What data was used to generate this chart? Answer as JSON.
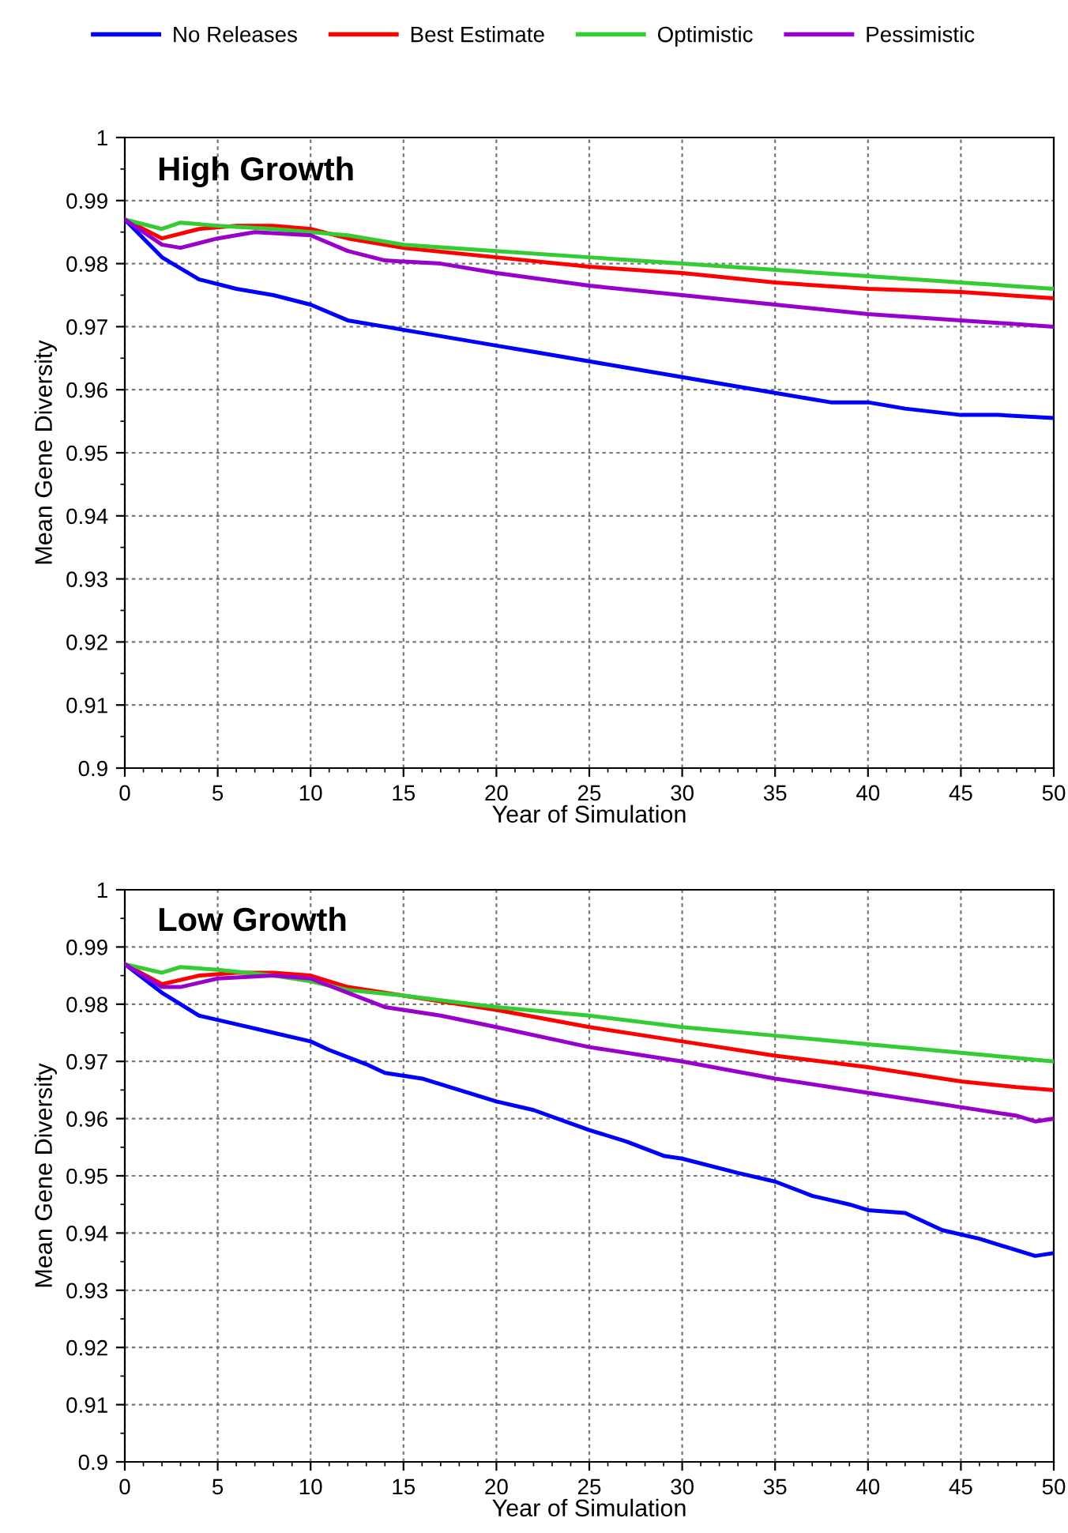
{
  "chart_data": [
    {
      "type": "line",
      "title": "High Growth",
      "xlabel": "Year of Simulation",
      "ylabel": "Mean Gene Diversity",
      "xlim": [
        0,
        50
      ],
      "xticks": [
        0,
        5,
        10,
        15,
        20,
        25,
        30,
        35,
        40,
        45,
        50
      ],
      "ylim": [
        0.9,
        1
      ],
      "yticks": [
        0.9,
        0.91,
        0.92,
        0.93,
        0.94,
        0.95,
        0.96,
        0.97,
        0.98,
        0.99,
        1
      ],
      "grid": true,
      "legend": "top",
      "line_style": "solid",
      "series": [
        {
          "name": "No Releases",
          "color": "#0000ff",
          "x": [
            0,
            1,
            2,
            4,
            6,
            8,
            10,
            12,
            14,
            16,
            18,
            20,
            22,
            25,
            27,
            30,
            32,
            35,
            38,
            40,
            42,
            45,
            47,
            50
          ],
          "values": [
            0.987,
            0.984,
            0.981,
            0.9775,
            0.976,
            0.975,
            0.9735,
            0.971,
            0.97,
            0.969,
            0.968,
            0.967,
            0.966,
            0.9645,
            0.9635,
            0.962,
            0.961,
            0.9595,
            0.958,
            0.958,
            0.957,
            0.956,
            0.956,
            0.9555
          ]
        },
        {
          "name": "Best Estimate",
          "color": "#ff0000",
          "x": [
            0,
            2,
            4,
            6,
            8,
            10,
            12,
            15,
            20,
            25,
            30,
            35,
            40,
            45,
            50
          ],
          "values": [
            0.987,
            0.984,
            0.9855,
            0.986,
            0.986,
            0.9855,
            0.984,
            0.9825,
            0.981,
            0.9795,
            0.9785,
            0.977,
            0.976,
            0.9755,
            0.9745
          ]
        },
        {
          "name": "Optimistic",
          "color": "#33cc33",
          "x": [
            0,
            2,
            3,
            5,
            8,
            10,
            12,
            15,
            20,
            25,
            30,
            35,
            40,
            45,
            50
          ],
          "values": [
            0.987,
            0.9855,
            0.9865,
            0.986,
            0.9855,
            0.985,
            0.9845,
            0.983,
            0.982,
            0.981,
            0.98,
            0.979,
            0.978,
            0.977,
            0.976
          ]
        },
        {
          "name": "Pessimistic",
          "color": "#9900cc",
          "x": [
            0,
            2,
            3,
            5,
            7,
            10,
            12,
            14,
            17,
            20,
            25,
            30,
            35,
            40,
            45,
            50
          ],
          "values": [
            0.987,
            0.983,
            0.9825,
            0.984,
            0.985,
            0.9845,
            0.982,
            0.9805,
            0.98,
            0.9785,
            0.9765,
            0.975,
            0.9735,
            0.972,
            0.971,
            0.97
          ]
        }
      ]
    },
    {
      "type": "line",
      "title": "Low Growth",
      "xlabel": "Year of Simulation",
      "ylabel": "Mean Gene Diversity",
      "xlim": [
        0,
        50
      ],
      "xticks": [
        0,
        5,
        10,
        15,
        20,
        25,
        30,
        35,
        40,
        45,
        50
      ],
      "ylim": [
        0.9,
        1
      ],
      "yticks": [
        0.9,
        0.91,
        0.92,
        0.93,
        0.94,
        0.95,
        0.96,
        0.97,
        0.98,
        0.99,
        1
      ],
      "grid": true,
      "line_style": "solid",
      "series": [
        {
          "color": "#0000ff",
          "x": [
            0,
            2,
            4,
            6,
            8,
            10,
            11,
            13,
            14,
            16,
            18,
            20,
            22,
            25,
            27,
            29,
            30,
            33,
            35,
            37,
            39,
            40,
            42,
            44,
            46,
            48,
            49,
            50
          ],
          "values": [
            0.987,
            0.982,
            0.978,
            0.9765,
            0.975,
            0.9735,
            0.972,
            0.9695,
            0.968,
            0.967,
            0.965,
            0.963,
            0.9615,
            0.958,
            0.956,
            0.9535,
            0.953,
            0.9505,
            0.949,
            0.9465,
            0.945,
            0.944,
            0.9435,
            0.9405,
            0.939,
            0.937,
            0.936,
            0.9365
          ]
        },
        {
          "color": "#ff0000",
          "x": [
            0,
            2,
            4,
            6,
            8,
            10,
            12,
            15,
            20,
            25,
            30,
            35,
            40,
            45,
            48,
            50
          ],
          "values": [
            0.987,
            0.9835,
            0.985,
            0.9855,
            0.9855,
            0.985,
            0.983,
            0.9815,
            0.979,
            0.976,
            0.9735,
            0.971,
            0.969,
            0.9665,
            0.9655,
            0.965
          ]
        },
        {
          "color": "#33cc33",
          "x": [
            0,
            2,
            3,
            5,
            8,
            10,
            12,
            15,
            20,
            25,
            30,
            35,
            40,
            45,
            50
          ],
          "values": [
            0.987,
            0.9855,
            0.9865,
            0.986,
            0.985,
            0.984,
            0.9825,
            0.9815,
            0.9795,
            0.978,
            0.976,
            0.9745,
            0.973,
            0.9715,
            0.97
          ]
        },
        {
          "color": "#9900cc",
          "x": [
            0,
            2,
            3,
            5,
            8,
            10,
            12,
            14,
            17,
            20,
            25,
            30,
            35,
            40,
            45,
            48,
            49,
            50
          ],
          "values": [
            0.987,
            0.983,
            0.983,
            0.9845,
            0.985,
            0.9845,
            0.982,
            0.9795,
            0.978,
            0.976,
            0.9725,
            0.97,
            0.967,
            0.9645,
            0.962,
            0.9605,
            0.9595,
            0.96
          ]
        }
      ]
    }
  ]
}
